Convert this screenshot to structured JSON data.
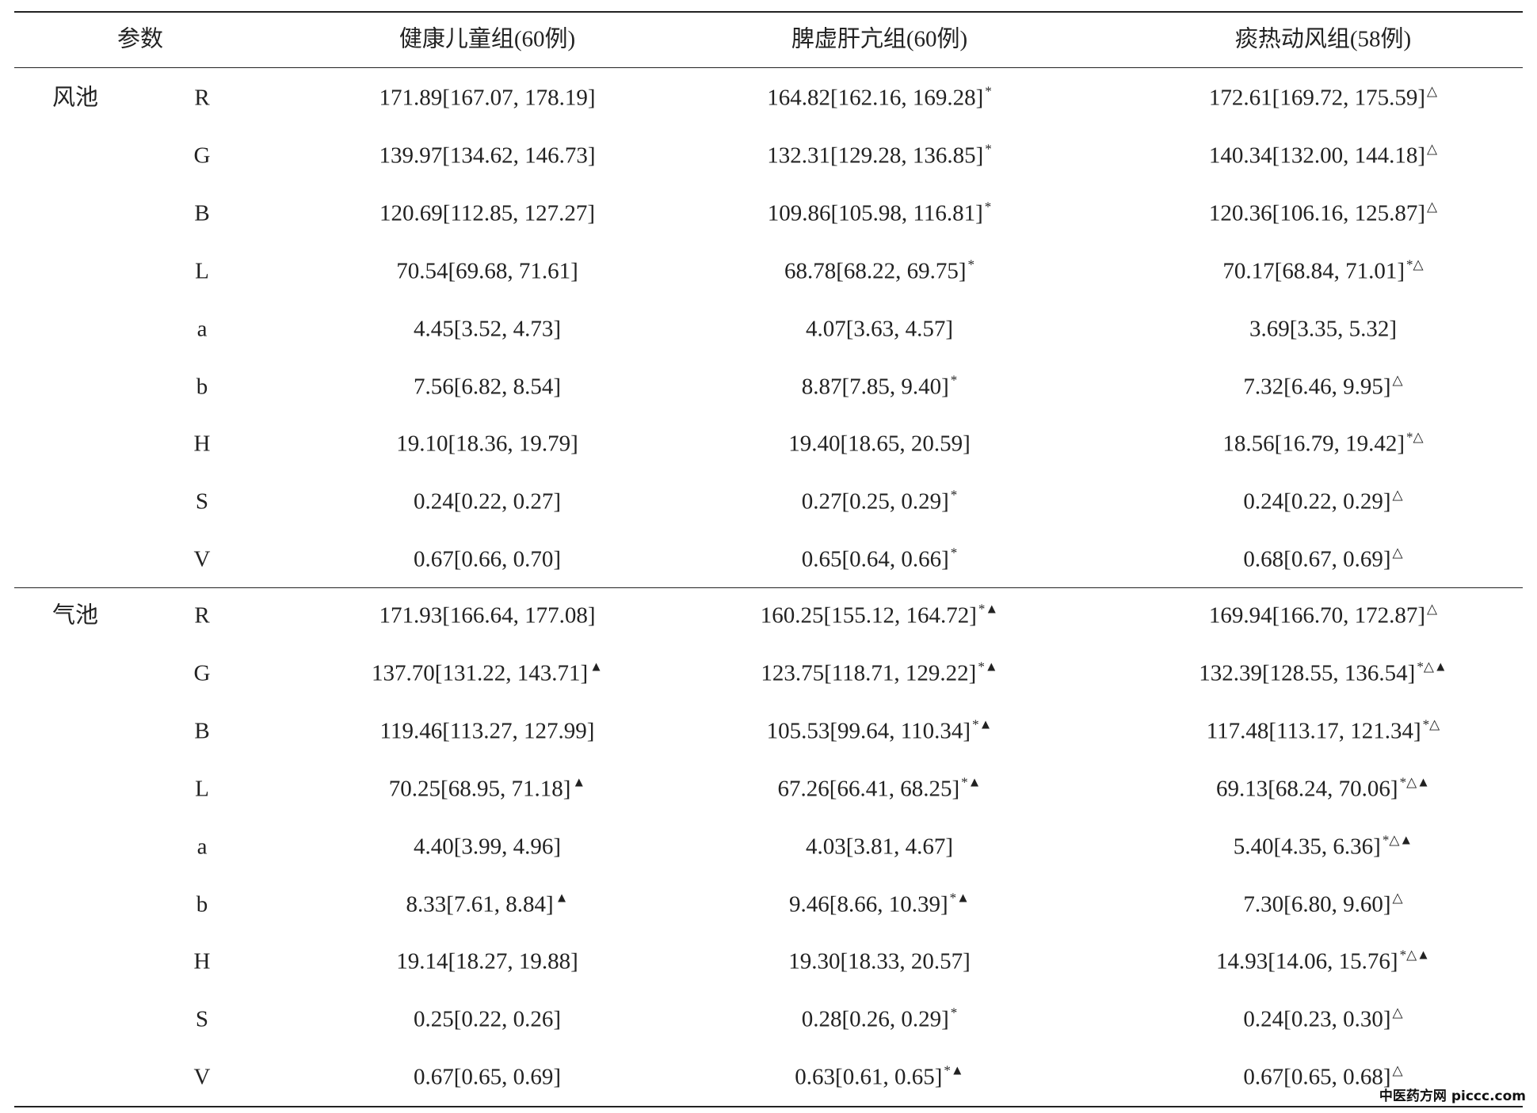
{
  "table": {
    "header": [
      "参数",
      "健康儿童组(60例)",
      "脾虚肝亢组(60例)",
      "痰热动风组(58例)"
    ],
    "groups": [
      {
        "name": "风池",
        "rows": [
          {
            "param": "R",
            "cells": [
              {
                "t": "171.89[167.07, 178.19]"
              },
              {
                "t": "164.82[162.16, 169.28]",
                "s": "*"
              },
              {
                "t": "172.61[169.72, 175.59]",
                "s": "△"
              }
            ]
          },
          {
            "param": "G",
            "cells": [
              {
                "t": "139.97[134.62, 146.73]"
              },
              {
                "t": "132.31[129.28, 136.85]",
                "s": "*"
              },
              {
                "t": "140.34[132.00, 144.18]",
                "s": "△"
              }
            ]
          },
          {
            "param": "B",
            "cells": [
              {
                "t": "120.69[112.85, 127.27]"
              },
              {
                "t": "109.86[105.98, 116.81]",
                "s": "*"
              },
              {
                "t": "120.36[106.16, 125.87]",
                "s": "△"
              }
            ]
          },
          {
            "param": "L",
            "cells": [
              {
                "t": "70.54[69.68, 71.61]"
              },
              {
                "t": "68.78[68.22, 69.75]",
                "s": "*"
              },
              {
                "t": "70.17[68.84, 71.01]",
                "s": "*△"
              }
            ]
          },
          {
            "param": "a",
            "cells": [
              {
                "t": "4.45[3.52, 4.73]"
              },
              {
                "t": "4.07[3.63, 4.57]"
              },
              {
                "t": "3.69[3.35, 5.32]"
              }
            ]
          },
          {
            "param": "b",
            "cells": [
              {
                "t": "7.56[6.82, 8.54]"
              },
              {
                "t": "8.87[7.85, 9.40]",
                "s": "*"
              },
              {
                "t": "7.32[6.46, 9.95]",
                "s": "△"
              }
            ]
          },
          {
            "param": "H",
            "cells": [
              {
                "t": "19.10[18.36, 19.79]"
              },
              {
                "t": "19.40[18.65, 20.59]"
              },
              {
                "t": "18.56[16.79, 19.42]",
                "s": "*△"
              }
            ]
          },
          {
            "param": "S",
            "cells": [
              {
                "t": "0.24[0.22, 0.27]"
              },
              {
                "t": "0.27[0.25, 0.29]",
                "s": "*"
              },
              {
                "t": "0.24[0.22, 0.29]",
                "s": "△"
              }
            ]
          },
          {
            "param": "V",
            "cells": [
              {
                "t": "0.67[0.66, 0.70]"
              },
              {
                "t": "0.65[0.64, 0.66]",
                "s": "*"
              },
              {
                "t": "0.68[0.67, 0.69]",
                "s": "△"
              }
            ]
          }
        ]
      },
      {
        "name": "气池",
        "rows": [
          {
            "param": "R",
            "cells": [
              {
                "t": "171.93[166.64, 177.08]"
              },
              {
                "t": "160.25[155.12, 164.72]",
                "s": "*▲"
              },
              {
                "t": "169.94[166.70, 172.87]",
                "s": "△"
              }
            ]
          },
          {
            "param": "G",
            "cells": [
              {
                "t": "137.70[131.22, 143.71]",
                "s": "▲"
              },
              {
                "t": "123.75[118.71, 129.22]",
                "s": "*▲"
              },
              {
                "t": "132.39[128.55, 136.54]",
                "s": "*△▲"
              }
            ]
          },
          {
            "param": "B",
            "cells": [
              {
                "t": "119.46[113.27, 127.99]"
              },
              {
                "t": "105.53[99.64, 110.34]",
                "s": "*▲"
              },
              {
                "t": "117.48[113.17, 121.34]",
                "s": "*△"
              }
            ]
          },
          {
            "param": "L",
            "cells": [
              {
                "t": "70.25[68.95, 71.18]",
                "s": "▲"
              },
              {
                "t": "67.26[66.41, 68.25]",
                "s": "*▲"
              },
              {
                "t": "69.13[68.24, 70.06]",
                "s": "*△▲"
              }
            ]
          },
          {
            "param": "a",
            "cells": [
              {
                "t": "4.40[3.99, 4.96]"
              },
              {
                "t": "4.03[3.81, 4.67]"
              },
              {
                "t": "5.40[4.35, 6.36]",
                "s": "*△▲"
              }
            ]
          },
          {
            "param": "b",
            "cells": [
              {
                "t": "8.33[7.61, 8.84]",
                "s": "▲"
              },
              {
                "t": "9.46[8.66, 10.39]",
                "s": "*▲"
              },
              {
                "t": "7.30[6.80, 9.60]",
                "s": "△"
              }
            ]
          },
          {
            "param": "H",
            "cells": [
              {
                "t": "19.14[18.27, 19.88]"
              },
              {
                "t": "19.30[18.33, 20.57]"
              },
              {
                "t": "14.93[14.06, 15.76]",
                "s": "*△▲"
              }
            ]
          },
          {
            "param": "S",
            "cells": [
              {
                "t": "0.25[0.22, 0.26]"
              },
              {
                "t": "0.28[0.26, 0.29]",
                "s": "*"
              },
              {
                "t": "0.24[0.23, 0.30]",
                "s": "△"
              }
            ]
          },
          {
            "param": "V",
            "cells": [
              {
                "t": "0.67[0.65, 0.69]"
              },
              {
                "t": "0.63[0.61, 0.65]",
                "s": "*▲"
              },
              {
                "t": "0.67[0.65, 0.68]",
                "s": "△"
              }
            ]
          }
        ]
      }
    ]
  },
  "watermark": "中医药方网 piccc.com"
}
